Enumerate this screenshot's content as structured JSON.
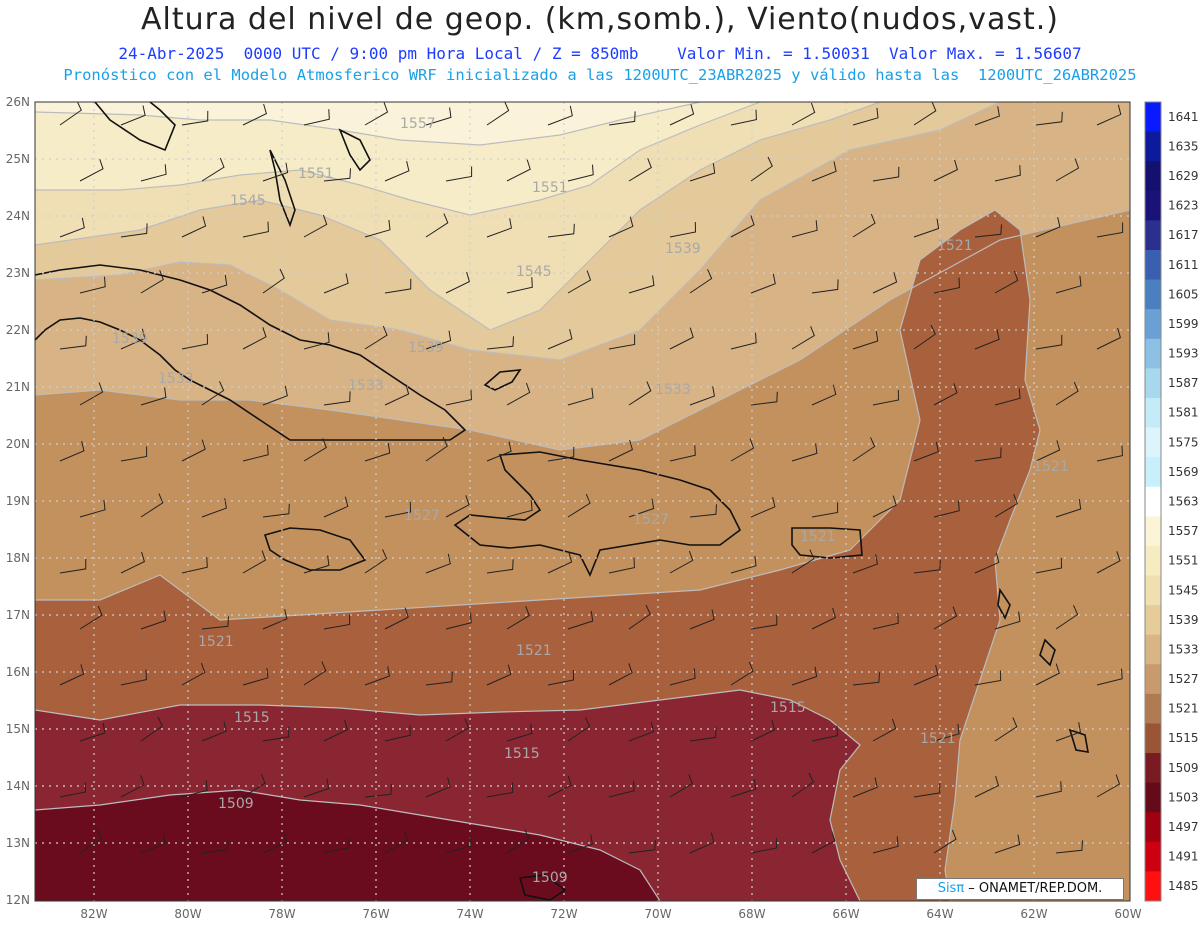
{
  "title": "Altura del nivel de geop. (km,somb.), Viento(nudos,vast.)",
  "subtitle_line1": "24-Abr-2025  0000 UTC / 9:00 pm Hora Local / Z = 850mb    Valor Min. = 1.50031  Valor Max. = 1.56607",
  "subtitle_line2": "Pronóstico con el Modelo Atmosferico WRF inicializado a las 1200UTC_23ABR2025 y válido hasta las  1200UTC_26ABR2025",
  "credit": {
    "logo": "Sisπ",
    "text": " – ONAMET/REP.DOM."
  },
  "lat_labels": [
    "26N",
    "25N",
    "24N",
    "23N",
    "22N",
    "21N",
    "20N",
    "19N",
    "18N",
    "17N",
    "16N",
    "15N",
    "14N",
    "13N",
    "12N"
  ],
  "lon_labels": [
    "82W",
    "80W",
    "78W",
    "76W",
    "74W",
    "72W",
    "70W",
    "68W",
    "66W",
    "64W",
    "62W",
    "60W"
  ],
  "colorbar": {
    "labels": [
      "1641",
      "1635",
      "1629",
      "1623",
      "1617",
      "1611",
      "1605",
      "1599",
      "1593",
      "1587",
      "1581",
      "1575",
      "1569",
      "1563",
      "1557",
      "1551",
      "1545",
      "1539",
      "1533",
      "1527",
      "1521",
      "1515",
      "1509",
      "1503",
      "1497",
      "1491",
      "1485"
    ],
    "colors": [
      "#0a1aff",
      "#0d1a9c",
      "#141070",
      "#1a1278",
      "#2b2f8f",
      "#3a5fb0",
      "#4a7fc0",
      "#6aa0d4",
      "#8cc0e4",
      "#a8d8ee",
      "#c4ecf8",
      "#dcf4fc",
      "#c8f0fa",
      "#ffffff",
      "#fbf4d6",
      "#f7ebc2",
      "#f0dfb0",
      "#e6cc98",
      "#d9b585",
      "#c89a6c",
      "#b07a52",
      "#9a5535",
      "#7a1a22",
      "#650a18",
      "#a00010",
      "#cc0010",
      "#ff1010"
    ]
  },
  "contour_labels": [
    "1557",
    "1551",
    "1551",
    "1545",
    "1545",
    "1539",
    "1539",
    "1539",
    "1533",
    "1533",
    "1533",
    "1527",
    "1527",
    "1521",
    "1521",
    "1521",
    "1521",
    "1521",
    "1521",
    "1515",
    "1515",
    "1515",
    "1509",
    "1509"
  ],
  "colors": {
    "shade_1557": "#fbf3d9",
    "shade_1551": "#f7ecc8",
    "shade_1545": "#f0dfb4",
    "shade_1539": "#e4c99b",
    "shade_1533": "#d8b385",
    "shade_1527": "#c3915e",
    "shade_1521": "#a9603d",
    "shade_1515": "#8a2632",
    "shade_1509": "#6a0c1e",
    "coast": "#111111"
  }
}
